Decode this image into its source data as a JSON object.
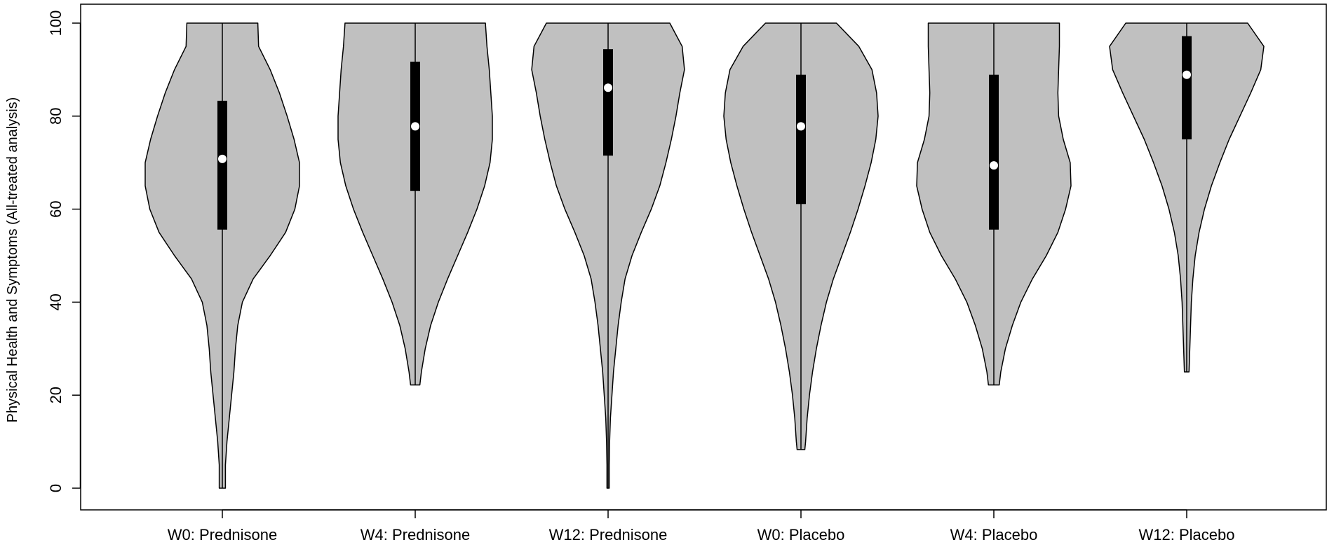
{
  "chart_data": {
    "type": "violin",
    "title": "",
    "xlabel": "",
    "ylabel": "Physical Health and Symptoms (All-treated analysis)",
    "ylim": [
      0,
      100
    ],
    "yticks": [
      0,
      20,
      40,
      60,
      80,
      100
    ],
    "grid": false,
    "legend": "none",
    "colors": {
      "violin_fill": "#c0c0c0",
      "violin_stroke": "#000000",
      "iqr_box": "#000000",
      "median_dot": "#ffffff"
    },
    "categories": [
      "W0: Prednisone",
      "W4: Prednisone",
      "W12: Prednisone",
      "W0: Placebo",
      "W4: Placebo",
      "W12: Placebo"
    ],
    "series": [
      {
        "category": "W0: Prednisone",
        "min": 0,
        "q1": 55.6,
        "median": 70.8,
        "q3": 83.3,
        "max": 100,
        "density": [
          [
            0,
            0.04
          ],
          [
            5,
            0.04
          ],
          [
            10,
            0.06
          ],
          [
            15,
            0.09
          ],
          [
            20,
            0.12
          ],
          [
            25,
            0.15
          ],
          [
            30,
            0.17
          ],
          [
            35,
            0.2
          ],
          [
            40,
            0.26
          ],
          [
            45,
            0.4
          ],
          [
            50,
            0.62
          ],
          [
            55,
            0.82
          ],
          [
            60,
            0.94
          ],
          [
            65,
            1.0
          ],
          [
            70,
            1.0
          ],
          [
            75,
            0.93
          ],
          [
            80,
            0.84
          ],
          [
            85,
            0.74
          ],
          [
            90,
            0.62
          ],
          [
            95,
            0.47
          ],
          [
            100,
            0.46
          ]
        ]
      },
      {
        "category": "W4: Prednisone",
        "min": 22.2,
        "q1": 63.9,
        "median": 77.8,
        "q3": 91.7,
        "max": 100,
        "density": [
          [
            22.2,
            0.06
          ],
          [
            25,
            0.08
          ],
          [
            30,
            0.13
          ],
          [
            35,
            0.2
          ],
          [
            40,
            0.3
          ],
          [
            45,
            0.42
          ],
          [
            50,
            0.55
          ],
          [
            55,
            0.68
          ],
          [
            60,
            0.8
          ],
          [
            65,
            0.9
          ],
          [
            70,
            0.97
          ],
          [
            75,
            1.0
          ],
          [
            80,
            1.0
          ],
          [
            85,
            0.98
          ],
          [
            90,
            0.96
          ],
          [
            95,
            0.93
          ],
          [
            100,
            0.91
          ]
        ]
      },
      {
        "category": "W12: Prednisone",
        "min": 0,
        "q1": 71.5,
        "median": 86.1,
        "q3": 94.4,
        "max": 100,
        "density": [
          [
            0,
            0.015
          ],
          [
            5,
            0.015
          ],
          [
            10,
            0.02
          ],
          [
            15,
            0.03
          ],
          [
            20,
            0.05
          ],
          [
            25,
            0.07
          ],
          [
            30,
            0.1
          ],
          [
            35,
            0.13
          ],
          [
            40,
            0.17
          ],
          [
            45,
            0.22
          ],
          [
            50,
            0.31
          ],
          [
            55,
            0.43
          ],
          [
            60,
            0.56
          ],
          [
            65,
            0.67
          ],
          [
            70,
            0.75
          ],
          [
            75,
            0.82
          ],
          [
            80,
            0.88
          ],
          [
            85,
            0.93
          ],
          [
            90,
            0.99
          ],
          [
            95,
            0.96
          ],
          [
            100,
            0.8
          ]
        ]
      },
      {
        "category": "W0: Placebo",
        "min": 8.3,
        "q1": 61.1,
        "median": 77.8,
        "q3": 88.9,
        "max": 100,
        "density": [
          [
            8.3,
            0.05
          ],
          [
            10,
            0.06
          ],
          [
            15,
            0.08
          ],
          [
            20,
            0.11
          ],
          [
            25,
            0.15
          ],
          [
            30,
            0.2
          ],
          [
            35,
            0.26
          ],
          [
            40,
            0.33
          ],
          [
            45,
            0.42
          ],
          [
            50,
            0.53
          ],
          [
            55,
            0.64
          ],
          [
            60,
            0.74
          ],
          [
            65,
            0.83
          ],
          [
            70,
            0.91
          ],
          [
            75,
            0.97
          ],
          [
            80,
            1.0
          ],
          [
            85,
            0.98
          ],
          [
            90,
            0.92
          ],
          [
            95,
            0.75
          ],
          [
            100,
            0.46
          ]
        ]
      },
      {
        "category": "W4: Placebo",
        "min": 22.2,
        "q1": 55.6,
        "median": 69.4,
        "q3": 88.9,
        "max": 100,
        "density": [
          [
            22.2,
            0.07
          ],
          [
            25,
            0.09
          ],
          [
            30,
            0.15
          ],
          [
            35,
            0.24
          ],
          [
            40,
            0.35
          ],
          [
            45,
            0.5
          ],
          [
            50,
            0.68
          ],
          [
            55,
            0.83
          ],
          [
            60,
            0.93
          ],
          [
            65,
            1.0
          ],
          [
            70,
            0.99
          ],
          [
            75,
            0.9
          ],
          [
            80,
            0.84
          ],
          [
            85,
            0.83
          ],
          [
            90,
            0.84
          ],
          [
            95,
            0.85
          ],
          [
            100,
            0.85
          ]
        ]
      },
      {
        "category": "W12: Placebo",
        "min": 25.0,
        "q1": 75.0,
        "median": 88.9,
        "q3": 97.2,
        "max": 100,
        "density": [
          [
            25,
            0.03
          ],
          [
            30,
            0.04
          ],
          [
            35,
            0.05
          ],
          [
            40,
            0.06
          ],
          [
            45,
            0.08
          ],
          [
            50,
            0.11
          ],
          [
            55,
            0.16
          ],
          [
            60,
            0.23
          ],
          [
            65,
            0.32
          ],
          [
            70,
            0.43
          ],
          [
            75,
            0.55
          ],
          [
            80,
            0.69
          ],
          [
            85,
            0.83
          ],
          [
            90,
            0.96
          ],
          [
            95,
            1.0
          ],
          [
            100,
            0.79
          ]
        ]
      }
    ]
  }
}
